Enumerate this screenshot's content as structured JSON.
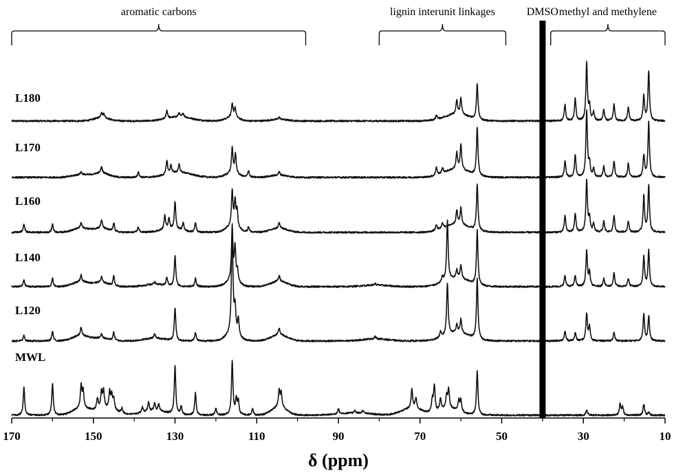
{
  "chart_data": {
    "type": "line",
    "title": "",
    "xlabel": "δ (ppm)",
    "ylabel": "",
    "xlim": [
      170,
      10
    ],
    "x_reversed": true,
    "xticks": [
      170,
      150,
      130,
      110,
      90,
      70,
      50,
      30,
      10
    ],
    "grid": false,
    "legend": "none",
    "line_color": "#111111",
    "annotations": [
      {
        "label": "aromatic carbons",
        "from": 170,
        "to": 98
      },
      {
        "label": "lignin interunit linkages",
        "from": 80,
        "to": 49
      },
      {
        "label": "methyl and methylene",
        "from": 38,
        "to": 10
      }
    ],
    "dmso": {
      "label": "DMSO",
      "x": 40
    },
    "series": [
      {
        "name": "L180",
        "peaks": [
          [
            148,
            0.2
          ],
          [
            147.4,
            0.14
          ],
          [
            132,
            0.3
          ],
          [
            129,
            0.15
          ],
          [
            128,
            0.14
          ],
          [
            116,
            0.45
          ],
          [
            115.3,
            0.35
          ],
          [
            104.5,
            0.08
          ],
          [
            66,
            0.15
          ],
          [
            61,
            0.5
          ],
          [
            60,
            0.6
          ],
          [
            56,
            1.3
          ],
          [
            34.5,
            0.6
          ],
          [
            32,
            0.8
          ],
          [
            29.2,
            2.1
          ],
          [
            28.5,
            0.5
          ],
          [
            27.5,
            0.3
          ],
          [
            25,
            0.4
          ],
          [
            22.5,
            0.6
          ],
          [
            19,
            0.5
          ],
          [
            15.2,
            0.9
          ],
          [
            14,
            1.8
          ]
        ],
        "humps": [
          [
            148,
            0.12,
            1.8
          ],
          [
            129,
            0.15,
            3
          ],
          [
            116,
            0.15,
            1.5
          ],
          [
            104.5,
            0.06,
            2
          ],
          [
            61,
            0.25,
            3
          ]
        ]
      },
      {
        "name": "L170",
        "peaks": [
          [
            153,
            0.1
          ],
          [
            148,
            0.22
          ],
          [
            139,
            0.2
          ],
          [
            132,
            0.5
          ],
          [
            131,
            0.3
          ],
          [
            129,
            0.3
          ],
          [
            116,
            0.9
          ],
          [
            115.2,
            0.7
          ],
          [
            112,
            0.25
          ],
          [
            104.5,
            0.12
          ],
          [
            66,
            0.3
          ],
          [
            64.5,
            0.2
          ],
          [
            61,
            0.6
          ],
          [
            60,
            0.9
          ],
          [
            56,
            1.75
          ],
          [
            34.5,
            0.6
          ],
          [
            32,
            0.8
          ],
          [
            29.2,
            2.4
          ],
          [
            28.5,
            0.5
          ],
          [
            27.5,
            0.3
          ],
          [
            25,
            0.4
          ],
          [
            22.5,
            0.6
          ],
          [
            19,
            0.5
          ],
          [
            15.2,
            0.8
          ],
          [
            14,
            2.0
          ]
        ],
        "humps": [
          [
            153,
            0.1,
            2
          ],
          [
            148,
            0.16,
            1.8
          ],
          [
            129,
            0.18,
            3
          ],
          [
            116,
            0.15,
            1.5
          ],
          [
            104.5,
            0.08,
            2
          ],
          [
            61,
            0.3,
            3
          ]
        ]
      },
      {
        "name": "L160",
        "peaks": [
          [
            167,
            0.3
          ],
          [
            160,
            0.3
          ],
          [
            153,
            0.2
          ],
          [
            148,
            0.3
          ],
          [
            145,
            0.3
          ],
          [
            139,
            0.2
          ],
          [
            132.5,
            0.5
          ],
          [
            131.5,
            0.4
          ],
          [
            130,
            1.0
          ],
          [
            128,
            0.3
          ],
          [
            125,
            0.35
          ],
          [
            116,
            1.3
          ],
          [
            115.3,
            0.9
          ],
          [
            114.8,
            0.6
          ],
          [
            112,
            0.2
          ],
          [
            104.5,
            0.2
          ],
          [
            66,
            0.2
          ],
          [
            64.5,
            0.2
          ],
          [
            61,
            0.5
          ],
          [
            60,
            0.6
          ],
          [
            56,
            1.7
          ],
          [
            34.5,
            0.6
          ],
          [
            32,
            0.7
          ],
          [
            29.2,
            1.9
          ],
          [
            28.5,
            0.5
          ],
          [
            27.5,
            0.3
          ],
          [
            25,
            0.4
          ],
          [
            22.5,
            0.6
          ],
          [
            19,
            0.4
          ],
          [
            15.2,
            1.3
          ],
          [
            14,
            1.7
          ]
        ],
        "humps": [
          [
            153,
            0.15,
            2
          ],
          [
            148,
            0.15,
            1.8
          ],
          [
            131,
            0.12,
            2.5
          ],
          [
            116,
            0.2,
            1.5
          ],
          [
            104.5,
            0.15,
            2
          ],
          [
            61,
            0.3,
            3
          ]
        ]
      },
      {
        "name": "L140",
        "peaks": [
          [
            167,
            0.25
          ],
          [
            160,
            0.3
          ],
          [
            153,
            0.25
          ],
          [
            148,
            0.2
          ],
          [
            145,
            0.35
          ],
          [
            135,
            0.1
          ],
          [
            132,
            0.3
          ],
          [
            130,
            1.1
          ],
          [
            125,
            0.3
          ],
          [
            116,
            1.9
          ],
          [
            115.3,
            1.2
          ],
          [
            114.7,
            0.4
          ],
          [
            104.5,
            0.2
          ],
          [
            81,
            0.05
          ],
          [
            64.5,
            0.2
          ],
          [
            63.3,
            2.2
          ],
          [
            61,
            0.3
          ],
          [
            60,
            0.5
          ],
          [
            56,
            2.0
          ],
          [
            34.5,
            0.4
          ],
          [
            32,
            0.4
          ],
          [
            29.2,
            1.3
          ],
          [
            28.5,
            0.5
          ],
          [
            25,
            0.3
          ],
          [
            22.5,
            0.5
          ],
          [
            19,
            0.3
          ],
          [
            15.2,
            1.1
          ],
          [
            14,
            1.3
          ]
        ],
        "humps": [
          [
            153,
            0.18,
            2
          ],
          [
            148,
            0.15,
            1.8
          ],
          [
            135,
            0.08,
            2.5
          ],
          [
            116,
            0.2,
            1.5
          ],
          [
            104.5,
            0.2,
            2
          ],
          [
            81,
            0.06,
            3
          ],
          [
            61,
            0.3,
            3
          ]
        ]
      },
      {
        "name": "L120",
        "peaks": [
          [
            167,
            0.2
          ],
          [
            160,
            0.35
          ],
          [
            153,
            0.3
          ],
          [
            148,
            0.15
          ],
          [
            145,
            0.3
          ],
          [
            135,
            0.15
          ],
          [
            130,
            1.2
          ],
          [
            125,
            0.3
          ],
          [
            116,
            3.9
          ],
          [
            115.3,
            0.9
          ],
          [
            114.5,
            0.6
          ],
          [
            104.5,
            0.25
          ],
          [
            81,
            0.08
          ],
          [
            65,
            0.2
          ],
          [
            63.3,
            1.9
          ],
          [
            61,
            0.3
          ],
          [
            60,
            0.5
          ],
          [
            56,
            2.2
          ],
          [
            34.5,
            0.35
          ],
          [
            32,
            0.3
          ],
          [
            29.2,
            1.0
          ],
          [
            28.5,
            0.5
          ],
          [
            22.5,
            0.3
          ],
          [
            15.2,
            1.0
          ],
          [
            14,
            0.9
          ]
        ],
        "humps": [
          [
            153,
            0.2,
            2
          ],
          [
            148,
            0.1,
            1.8
          ],
          [
            135,
            0.1,
            2.5
          ],
          [
            116,
            0.25,
            1.5
          ],
          [
            104.5,
            0.22,
            2
          ],
          [
            81,
            0.08,
            3
          ],
          [
            61,
            0.3,
            3
          ]
        ]
      },
      {
        "name": "MWL",
        "peaks": [
          [
            167,
            1.0
          ],
          [
            160,
            1.15
          ],
          [
            153,
            0.8
          ],
          [
            152.5,
            0.6
          ],
          [
            149,
            0.4
          ],
          [
            148,
            0.6
          ],
          [
            147.5,
            0.6
          ],
          [
            146,
            0.6
          ],
          [
            145.5,
            0.5
          ],
          [
            145,
            0.4
          ],
          [
            143,
            0.2
          ],
          [
            138,
            0.2
          ],
          [
            136.5,
            0.35
          ],
          [
            135,
            0.3
          ],
          [
            134,
            0.25
          ],
          [
            130,
            1.75
          ],
          [
            128.5,
            0.3
          ],
          [
            125,
            0.8
          ],
          [
            120,
            0.25
          ],
          [
            116,
            1.95
          ],
          [
            115,
            0.55
          ],
          [
            114.5,
            0.5
          ],
          [
            111,
            0.25
          ],
          [
            104.5,
            0.6
          ],
          [
            104,
            0.5
          ],
          [
            90,
            0.2
          ],
          [
            86,
            0.1
          ],
          [
            84,
            0.1
          ],
          [
            72,
            0.7
          ],
          [
            71,
            0.4
          ],
          [
            67,
            0.45
          ],
          [
            66.5,
            0.95
          ],
          [
            65,
            0.4
          ],
          [
            63.5,
            0.45
          ],
          [
            63,
            0.7
          ],
          [
            60.5,
            0.4
          ],
          [
            60,
            0.4
          ],
          [
            56,
            1.6
          ],
          [
            29.2,
            0.2
          ],
          [
            21,
            0.4
          ],
          [
            20.4,
            0.3
          ],
          [
            15.2,
            0.4
          ],
          [
            14,
            0.1
          ]
        ],
        "humps": [
          [
            153,
            0.25,
            2
          ],
          [
            147,
            0.25,
            2.5
          ],
          [
            135,
            0.15,
            3
          ],
          [
            104.5,
            0.3,
            1.8
          ],
          [
            86,
            0.08,
            4
          ],
          [
            72,
            0.25,
            2.5
          ],
          [
            63,
            0.25,
            2.5
          ]
        ]
      }
    ]
  }
}
